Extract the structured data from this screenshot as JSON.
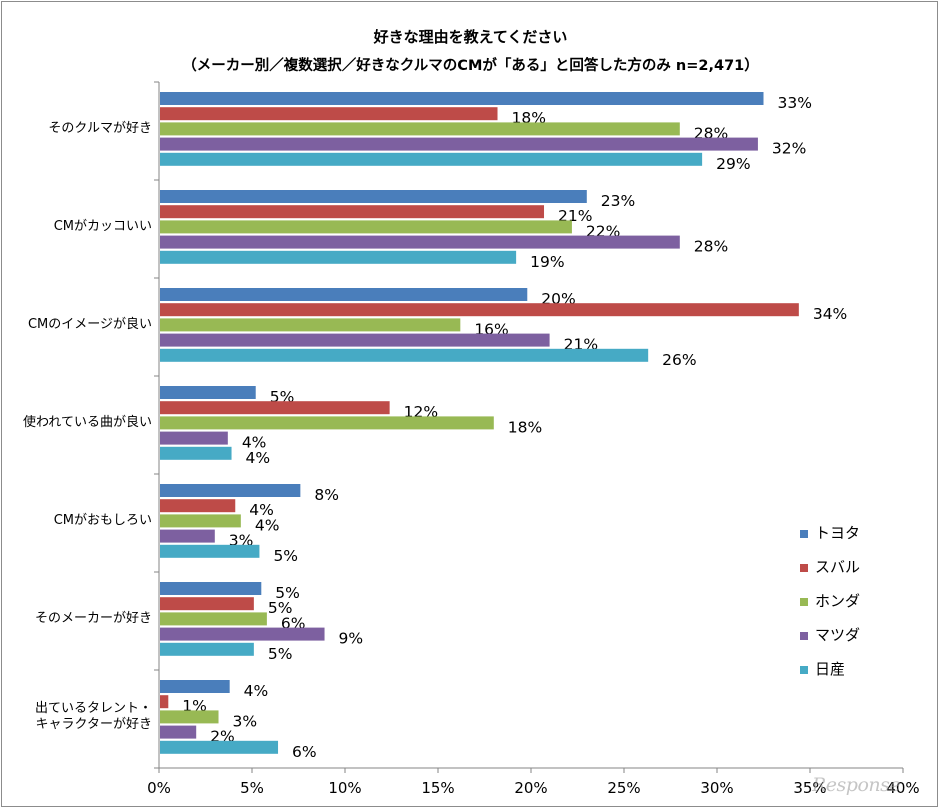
{
  "chart_data": {
    "type": "bar",
    "orientation": "horizontal",
    "title": "好きな理由を教えてください",
    "subtitle": "（メーカー別／複数選択／好きなクルマのCMが「ある」と回答した方のみ n=2,471）",
    "categories": [
      "そのクルマが好き",
      "CMがカッコいい",
      "CMのイメージが良い",
      "使われている曲が良い",
      "CMがおもしろい",
      "そのメーカーが好き",
      "出ているタレント・\nキャラクターが好き"
    ],
    "series": [
      {
        "name": "トヨタ",
        "color": "#4a7ebb",
        "values": [
          32.5,
          23,
          19.8,
          5.2,
          7.6,
          5.5,
          3.8
        ],
        "labels": [
          "33%",
          "23%",
          "20%",
          "5%",
          "8%",
          "5%",
          "4%"
        ]
      },
      {
        "name": "スバル",
        "color": "#be4b48",
        "values": [
          18.2,
          20.7,
          34.4,
          12.4,
          4.1,
          5.1,
          0.5
        ],
        "labels": [
          "18%",
          "21%",
          "34%",
          "12%",
          "4%",
          "5%",
          "1%"
        ]
      },
      {
        "name": "ホンダ",
        "color": "#98b954",
        "values": [
          28,
          22.2,
          16.2,
          18,
          4.4,
          5.8,
          3.2
        ],
        "labels": [
          "28%",
          "22%",
          "16%",
          "18%",
          "4%",
          "6%",
          "3%"
        ]
      },
      {
        "name": "マツダ",
        "color": "#7d60a0",
        "values": [
          32.2,
          28,
          21,
          3.7,
          3,
          8.9,
          2
        ],
        "labels": [
          "32%",
          "28%",
          "21%",
          "4%",
          "3%",
          "9%",
          "2%"
        ]
      },
      {
        "name": "日産",
        "color": "#46aac5",
        "values": [
          29.2,
          19.2,
          26.3,
          3.9,
          5.4,
          5.1,
          6.4
        ],
        "labels": [
          "29%",
          "19%",
          "26%",
          "4%",
          "5%",
          "5%",
          "6%"
        ]
      }
    ],
    "xlim": [
      0,
      40
    ],
    "xticks": [
      "0%",
      "5%",
      "10%",
      "15%",
      "20%",
      "25%",
      "30%",
      "35%",
      "40%"
    ],
    "grid": false,
    "legend_position": "right"
  },
  "watermark": "Response"
}
